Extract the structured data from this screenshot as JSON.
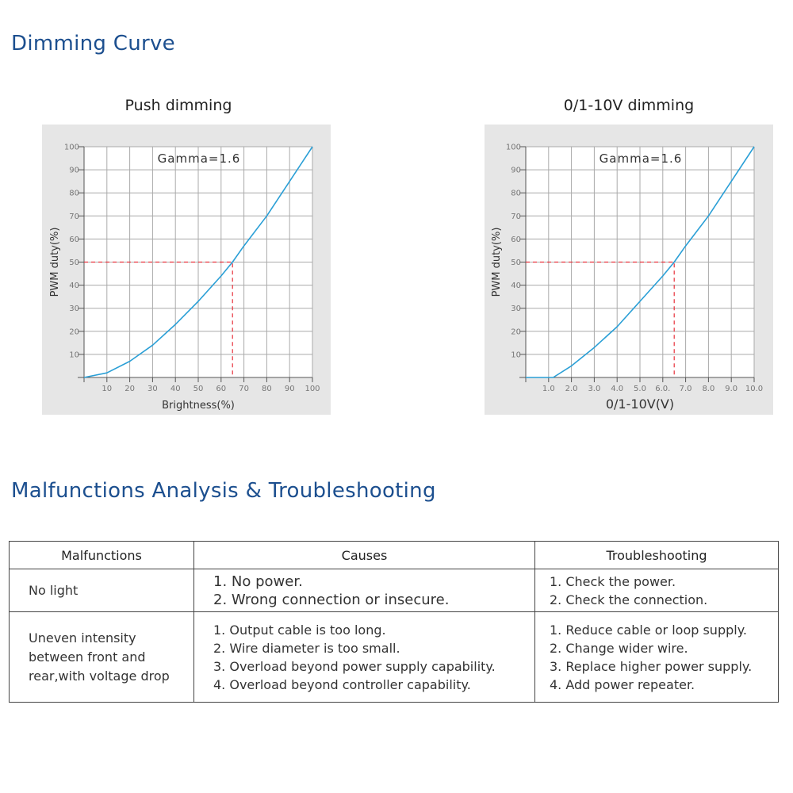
{
  "sections": {
    "dimming_title": "Dimming Curve",
    "troubleshooting_title": "Malfunctions Analysis & Troubleshooting"
  },
  "chart_data": [
    {
      "type": "line",
      "title": "Push dimming",
      "annotation": "Gamma=1.6",
      "xlabel": "Brightness(%)",
      "ylabel": "PWM duty(%)",
      "xlim": [
        0,
        100
      ],
      "ylim": [
        0,
        100
      ],
      "x_ticks": [
        "10",
        "20",
        "30",
        "40",
        "50",
        "60",
        "70",
        "80",
        "90",
        "100"
      ],
      "y_ticks": [
        "10",
        "20",
        "30",
        "40",
        "50",
        "60",
        "70",
        "80",
        "90",
        "100"
      ],
      "grid": true,
      "series": [
        {
          "x": [
            0,
            10,
            20,
            30,
            40,
            50,
            60,
            65,
            70,
            80,
            90,
            100
          ],
          "y": [
            0,
            2,
            7,
            14,
            23,
            33,
            44,
            50,
            57,
            70,
            85,
            100
          ],
          "color": "#2a9fd6"
        }
      ],
      "reference": {
        "x": 65,
        "y": 50,
        "color": "#e8303a"
      }
    },
    {
      "type": "line",
      "title": "0/1-10V dimming",
      "annotation": "Gamma=1.6",
      "xlabel": "0/1-10V(V)",
      "ylabel": "PWM duty(%)",
      "xlim": [
        0,
        10
      ],
      "ylim": [
        0,
        100
      ],
      "x_ticks": [
        "1.0",
        "2.0",
        "3.0",
        "4.0",
        "5.0",
        "6.0.",
        "7.0",
        "8.0",
        "9.0",
        "10.0"
      ],
      "y_ticks": [
        "10",
        "20",
        "30",
        "40",
        "50",
        "60",
        "70",
        "80",
        "90",
        "100"
      ],
      "grid": true,
      "series": [
        {
          "x": [
            0,
            1.2,
            2,
            3,
            4,
            5,
            6,
            6.5,
            7,
            8,
            9,
            10
          ],
          "y": [
            0,
            0,
            5,
            13,
            22,
            33,
            44,
            50,
            57,
            70,
            85,
            100
          ],
          "color": "#2a9fd6"
        }
      ],
      "reference": {
        "x": 6.5,
        "y": 50,
        "color": "#e8303a"
      }
    }
  ],
  "table": {
    "headers": [
      "Malfunctions",
      "Causes",
      "Troubleshooting"
    ],
    "rows": [
      {
        "malfunction": [
          "No light"
        ],
        "causes": [
          "1. No power.",
          "2. Wrong connection or insecure."
        ],
        "fixes": [
          "1. Check the power.",
          "2. Check the connection."
        ]
      },
      {
        "malfunction": [
          "Uneven intensity",
          "between front and",
          "rear,with voltage drop"
        ],
        "causes": [
          "1. Output cable is too long.",
          "2. Wire diameter is too small.",
          "3. Overload beyond power supply capability.",
          "4. Overload beyond controller capability."
        ],
        "fixes": [
          "1. Reduce cable or loop supply.",
          "2. Change wider wire.",
          "3. Replace higher power supply.",
          "4. Add power repeater."
        ]
      }
    ]
  }
}
